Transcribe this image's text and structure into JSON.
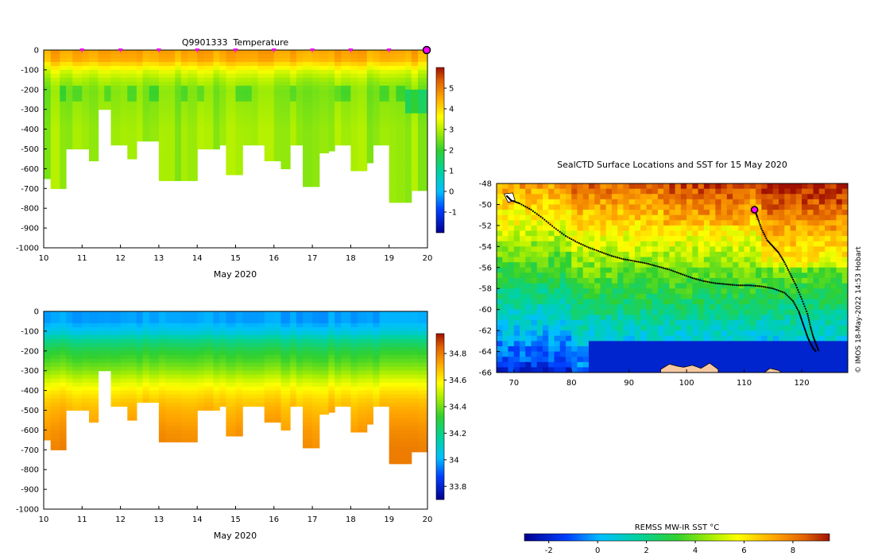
{
  "chart_data": [
    {
      "type": "heatmap",
      "id": "temperature",
      "title": "Q9901333  Temperature",
      "xlabel": "May 2020",
      "ylabel": "",
      "xlim": [
        10,
        20
      ],
      "ylim": [
        -1000,
        0
      ],
      "x_ticks": [
        10,
        11,
        12,
        13,
        14,
        15,
        16,
        17,
        18,
        19,
        20
      ],
      "y_ticks": [
        0,
        -100,
        -200,
        -300,
        -400,
        -500,
        -600,
        -700,
        -800,
        -900,
        -1000
      ],
      "colorbar": {
        "min": -2,
        "max": 6,
        "ticks": [
          5,
          4,
          3,
          2,
          1,
          0,
          -1
        ]
      },
      "profile_markers_day": [
        11,
        12,
        13,
        14,
        15,
        16,
        17,
        18,
        19
      ],
      "last_profile_day": 20.0,
      "profile_times": [
        10.0,
        10.18,
        10.42,
        10.58,
        10.75,
        11.0,
        11.18,
        11.42,
        11.58,
        11.75,
        12.0,
        12.18,
        12.42,
        12.58,
        12.75,
        13.0,
        13.18,
        13.42,
        13.58,
        13.75,
        14.0,
        14.18,
        14.42,
        14.58,
        14.75,
        15.0,
        15.18,
        15.42,
        15.58,
        15.75,
        16.0,
        16.18,
        16.42,
        16.58,
        16.75,
        17.0,
        17.18,
        17.42,
        17.58,
        17.75,
        18.0,
        18.18,
        18.42,
        18.58,
        18.75,
        19.0,
        19.18,
        19.42,
        19.58,
        19.75,
        20.0
      ],
      "profile_max_depth": [
        650,
        700,
        700,
        500,
        500,
        500,
        560,
        300,
        300,
        480,
        480,
        550,
        460,
        460,
        460,
        660,
        660,
        660,
        660,
        660,
        500,
        500,
        500,
        480,
        630,
        630,
        480,
        480,
        480,
        560,
        560,
        600,
        480,
        480,
        690,
        690,
        520,
        510,
        480,
        480,
        610,
        610,
        570,
        480,
        480,
        770,
        770,
        770,
        710,
        710,
        710
      ],
      "temperature_profile_depth": [
        0,
        50,
        100,
        150,
        200,
        300,
        400,
        500,
        700
      ],
      "temperature_profile_value": [
        4.6,
        4.4,
        3.4,
        2.9,
        2.6,
        2.7,
        2.8,
        2.8,
        2.8
      ]
    },
    {
      "type": "heatmap",
      "id": "salinity",
      "title": "",
      "xlabel": "May 2020",
      "ylabel": "",
      "xlim": [
        10,
        20
      ],
      "ylim": [
        -1000,
        0
      ],
      "x_ticks": [
        10,
        11,
        12,
        13,
        14,
        15,
        16,
        17,
        18,
        19,
        20
      ],
      "y_ticks": [
        0,
        -100,
        -200,
        -300,
        -400,
        -500,
        -600,
        -700,
        -800,
        -900,
        -1000
      ],
      "colorbar": {
        "min": 33.7,
        "max": 34.95,
        "ticks": [
          34.8,
          34.6,
          34.4,
          34.2,
          34,
          33.8
        ]
      },
      "salinity_profile_depth": [
        0,
        50,
        100,
        150,
        200,
        250,
        300,
        350,
        400,
        450,
        500,
        600,
        700
      ],
      "salinity_profile_value": [
        33.98,
        33.98,
        34.05,
        34.2,
        34.3,
        34.36,
        34.43,
        34.52,
        34.6,
        34.66,
        34.7,
        34.75,
        34.78
      ]
    },
    {
      "type": "heatmap",
      "id": "sst_map",
      "title": "SealCTD Surface Locations and SST for 15 May 2020",
      "xlabel": "",
      "ylabel": "",
      "xlim": [
        67,
        128
      ],
      "ylim": [
        -66,
        -48
      ],
      "x_ticks": [
        70,
        80,
        90,
        100,
        110,
        120
      ],
      "y_ticks": [
        -48,
        -50,
        -52,
        -54,
        -56,
        -58,
        -60,
        -62,
        -64,
        -66
      ],
      "colorbar": {
        "label": "REMSS MW-IR SST °C",
        "min": -3,
        "max": 9.5,
        "ticks": [
          -2,
          0,
          2,
          4,
          6,
          8
        ]
      },
      "credit": "© IMOS 18-May-2022 14:53 Hobart",
      "current_position": {
        "lon": 111.8,
        "lat": -50.5
      },
      "track_lon": [
        68.8,
        69.5,
        71,
        73,
        75,
        77,
        79,
        81,
        83,
        85,
        87,
        89,
        91,
        93,
        95,
        97,
        99,
        101,
        103,
        105,
        107,
        109,
        111,
        113,
        115,
        117,
        118.5,
        119.5,
        120,
        120.5,
        121,
        121.5,
        122,
        122.5
      ],
      "track_lat": [
        -49.2,
        -49.6,
        -49.9,
        -50.5,
        -51.3,
        -52.2,
        -53.0,
        -53.6,
        -54.1,
        -54.5,
        -54.9,
        -55.2,
        -55.4,
        -55.6,
        -55.9,
        -56.2,
        -56.6,
        -57.0,
        -57.3,
        -57.5,
        -57.6,
        -57.7,
        -57.7,
        -57.8,
        -58.0,
        -58.4,
        -59.2,
        -60.2,
        -61.0,
        -61.8,
        -62.6,
        -63.2,
        -63.7,
        -64.0
      ],
      "track2_lon": [
        111.8,
        112.3,
        113,
        114,
        115,
        116,
        117,
        118,
        119,
        120,
        121,
        121.5,
        122,
        122.5,
        123
      ],
      "track2_lat": [
        -50.5,
        -51.2,
        -52.3,
        -53.4,
        -54.0,
        -54.6,
        -55.5,
        -56.6,
        -57.7,
        -59.0,
        -60.4,
        -61.6,
        -62.6,
        -63.3,
        -64.0
      ],
      "coast_lon": [
        95.5,
        97,
        98.5,
        99.5,
        101,
        102.5,
        104,
        105.5
      ],
      "coast_lat": [
        -65.7,
        -65.2,
        -65.4,
        -65.5,
        -65.3,
        -65.6,
        -65.1,
        -65.7
      ]
    }
  ]
}
